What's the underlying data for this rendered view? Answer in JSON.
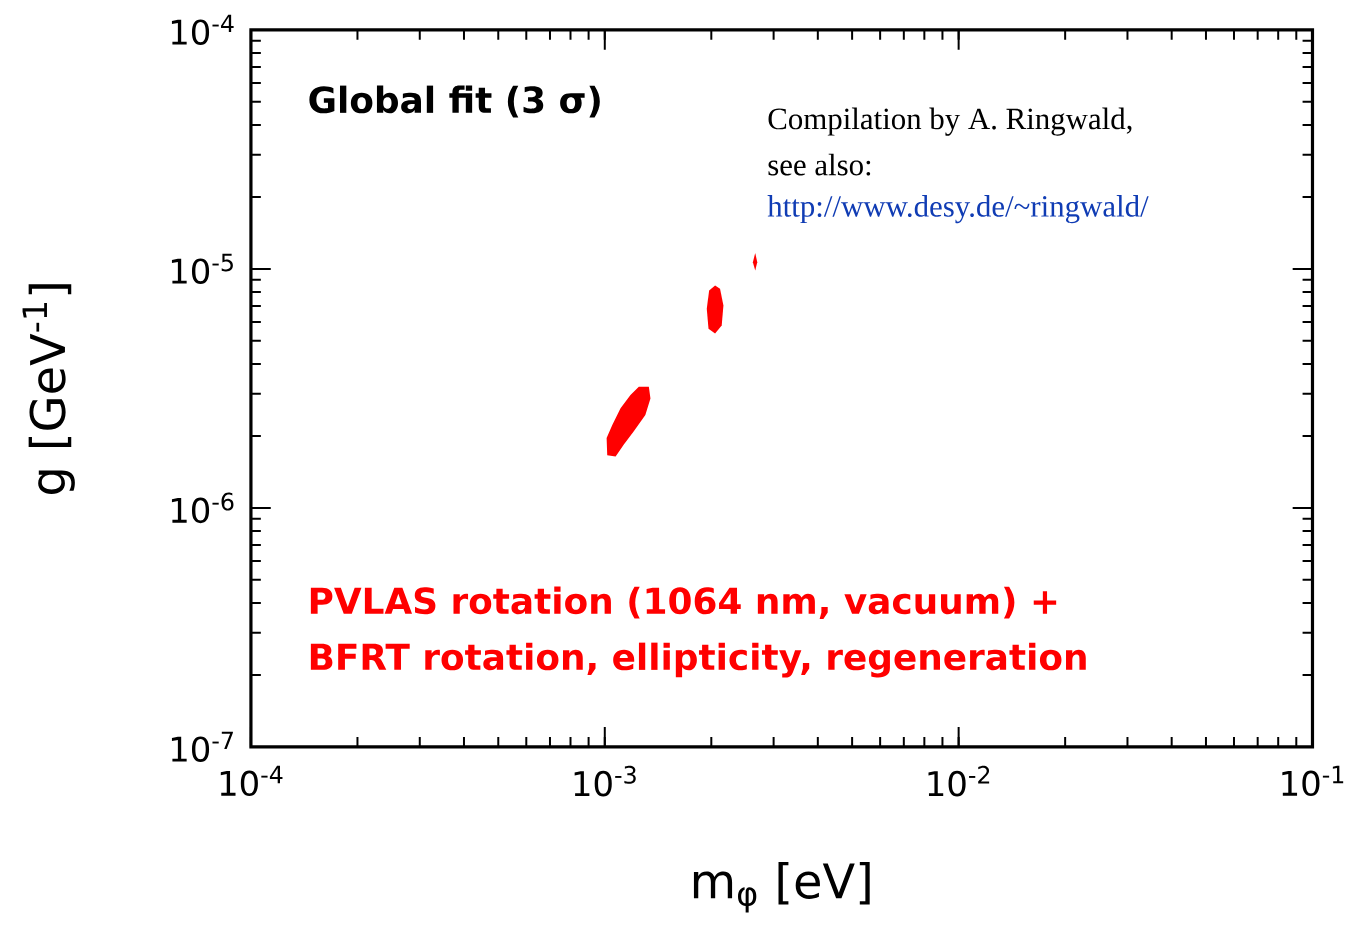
{
  "chart_data": {
    "type": "area",
    "log": "xy",
    "xlabel": "m$_{φ}$ [eV]",
    "ylabel": "g [GeV$^{-1}$]",
    "xlim": [
      0.0001,
      0.1
    ],
    "ylim": [
      1e-07,
      0.0001
    ],
    "xticks": [
      {
        "value": 0.0001,
        "label": "10$^{-4}$"
      },
      {
        "value": 0.001,
        "label": "10$^{-3}$"
      },
      {
        "value": 0.01,
        "label": "10$^{-2}$"
      },
      {
        "value": 0.1,
        "label": "10$^{-1}$"
      }
    ],
    "yticks": [
      {
        "value": 1e-07,
        "label": "10$^{-7}$"
      },
      {
        "value": 1e-06,
        "label": "10$^{-6}$"
      },
      {
        "value": 1e-05,
        "label": "10$^{-5}$"
      },
      {
        "value": 0.0001,
        "label": "10$^{-4}$"
      }
    ],
    "series": [
      {
        "color": "#ff0000",
        "x": [
          0.001016,
          0.001012,
          0.00105,
          0.001108,
          0.001182,
          0.001248,
          0.001332,
          0.001346,
          0.001302,
          0.001208,
          0.001132,
          0.001073
        ],
        "values": [
          1.66e-06,
          1.96e-06,
          2.22e-06,
          2.61e-06,
          2.97e-06,
          3.21e-06,
          3.21e-06,
          2.87e-06,
          2.45e-06,
          2.09e-06,
          1.84e-06,
          1.64e-06
        ]
      },
      {
        "color": "#ff0000",
        "x": [
          0.00205,
          0.002117,
          0.002164,
          0.00214,
          0.00205,
          0.001964,
          0.001942,
          0.001972
        ],
        "values": [
          8.52e-06,
          8.25e-06,
          7.03e-06,
          5.8e-06,
          5.36e-06,
          5.62e-06,
          6.81e-06,
          8.12e-06
        ]
      },
      {
        "color": "#ff0000",
        "x": [
          0.002662,
          0.002697,
          0.002662,
          0.002621
        ],
        "values": [
          1.166e-05,
          1.066e-05,
          9.84e-06,
          1.066e-05
        ]
      }
    ],
    "annotations": [
      "Global fit (3 σ)",
      "Compilation by A. Ringwald,",
      "see also:",
      "http://www.desy.de/~ringwald/",
      "PVLAS rotation (1064 nm, vacuum) +",
      "BFRT rotation, ellipticity, regeneration"
    ]
  }
}
